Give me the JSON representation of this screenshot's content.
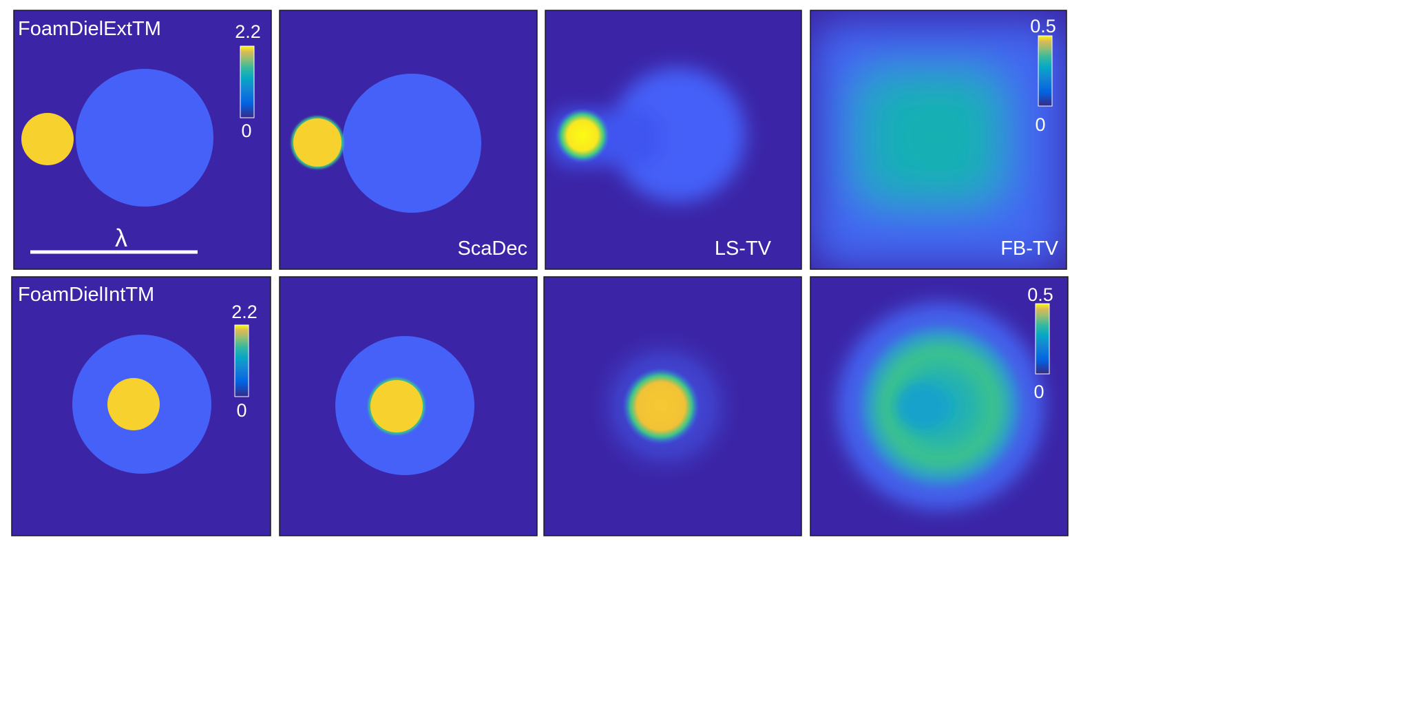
{
  "rows": [
    {
      "title": "FoamDielExtTM",
      "scalebar_label": "λ",
      "colorbar_left": {
        "max": "2.2",
        "min": "0"
      },
      "colorbar_right": {
        "max": "0.5",
        "min": "0"
      }
    },
    {
      "title": "FoamDielIntTM",
      "colorbar_left": {
        "max": "2.2",
        "min": "0"
      },
      "colorbar_right": {
        "max": "0.5",
        "min": "0"
      }
    }
  ],
  "methods": [
    "ScaDec",
    "LS-TV",
    "FB-TV"
  ],
  "colors": {
    "background": "#3b24a6",
    "medium": "#4561f8",
    "high": "#f7d12e",
    "peak": "#f9f518",
    "mid_teal": "#1eb4b4",
    "mid_green": "#3ccc80"
  },
  "colormap": "parula"
}
